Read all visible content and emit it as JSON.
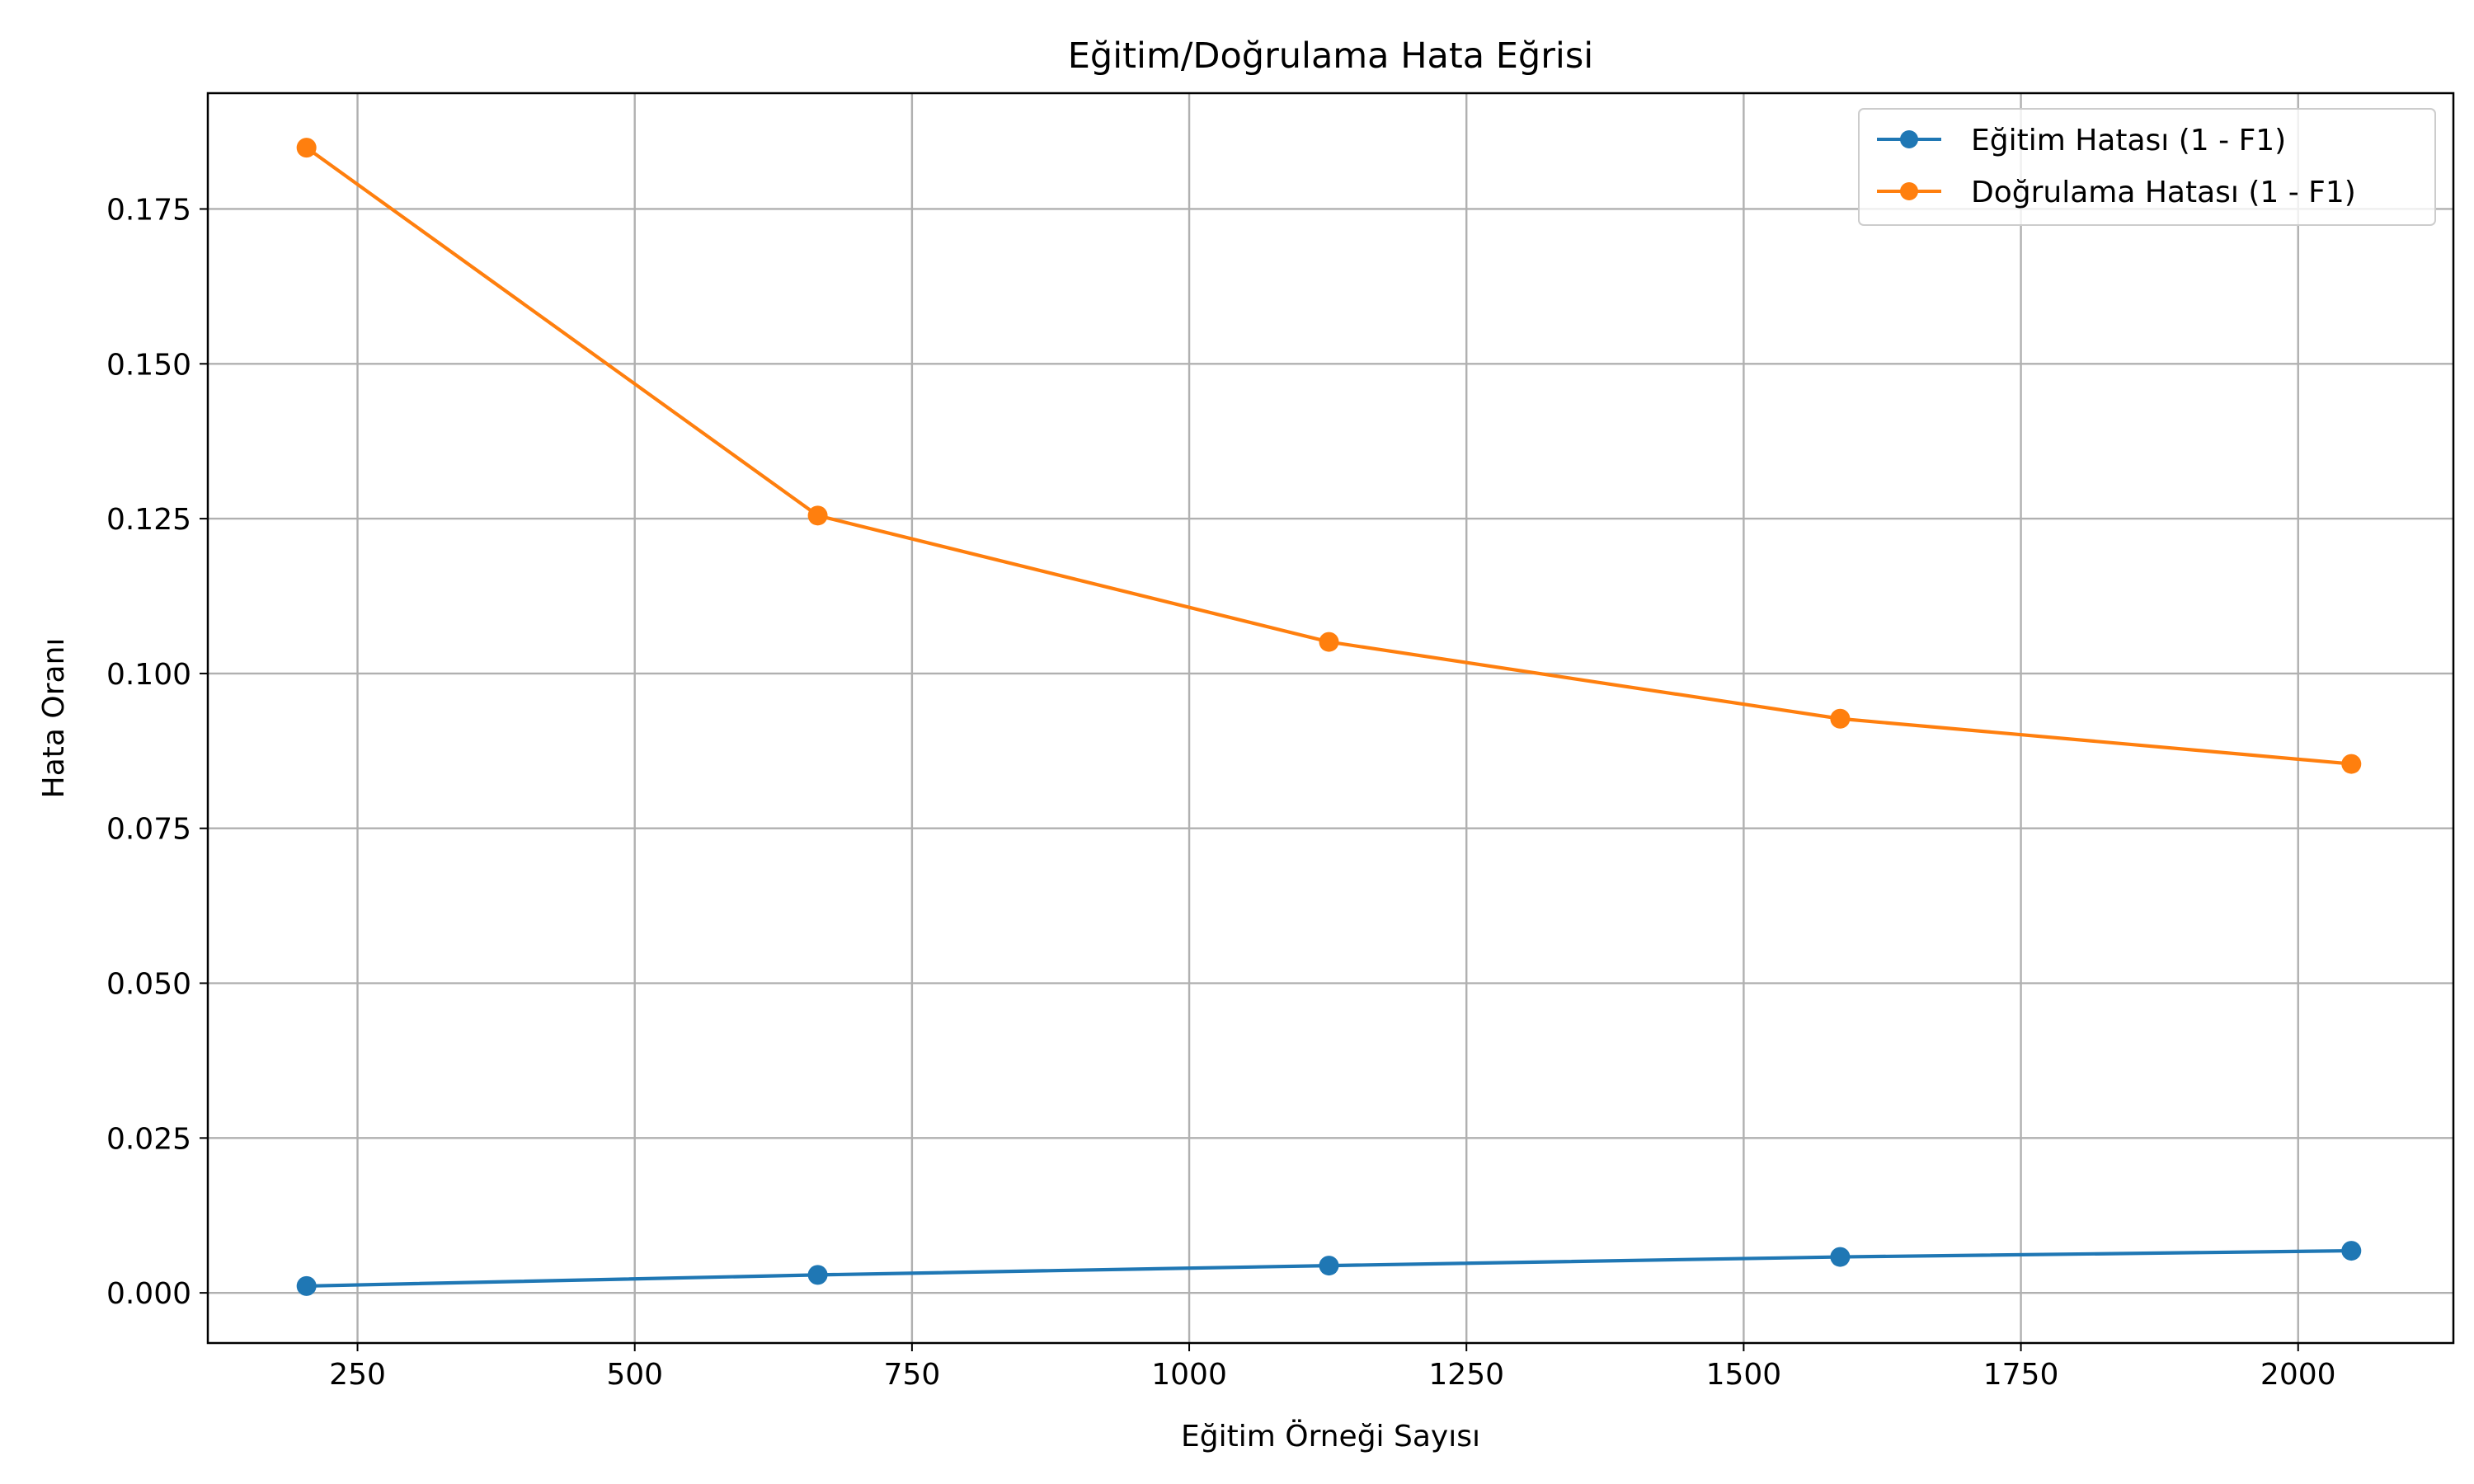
{
  "chart_data": {
    "type": "line",
    "title": "Eğitim/Doğrulama Hata Eğrisi",
    "xlabel": "Eğitim Örneği Sayısı",
    "ylabel": "Hata Oranı",
    "xlim": [
      115,
      2140
    ],
    "ylim": [
      -0.0081,
      0.1937
    ],
    "grid": true,
    "legend_position": "top-right",
    "x_ticks": [
      250,
      500,
      750,
      1000,
      1250,
      1500,
      1750,
      2000
    ],
    "x_tick_labels": [
      "250",
      "500",
      "750",
      "1000",
      "1250",
      "1500",
      "1750",
      "2000"
    ],
    "y_ticks": [
      0.0,
      0.025,
      0.05,
      0.075,
      0.1,
      0.125,
      0.15,
      0.175
    ],
    "y_tick_labels": [
      "0.000",
      "0.025",
      "0.050",
      "0.075",
      "0.100",
      "0.125",
      "0.150",
      "0.175"
    ],
    "x": [
      204,
      665,
      1126,
      1587,
      2048
    ],
    "series": [
      {
        "name": "Eğitim Hatası (1 - F1)",
        "color": "#1f77b4",
        "values": [
          0.0011,
          0.0029,
          0.0044,
          0.0058,
          0.0068
        ]
      },
      {
        "name": "Doğrulama Hatası (1 - F1)",
        "color": "#ff7f0e",
        "values": [
          0.1849,
          0.1255,
          0.1051,
          0.0927,
          0.0854
        ]
      }
    ]
  }
}
